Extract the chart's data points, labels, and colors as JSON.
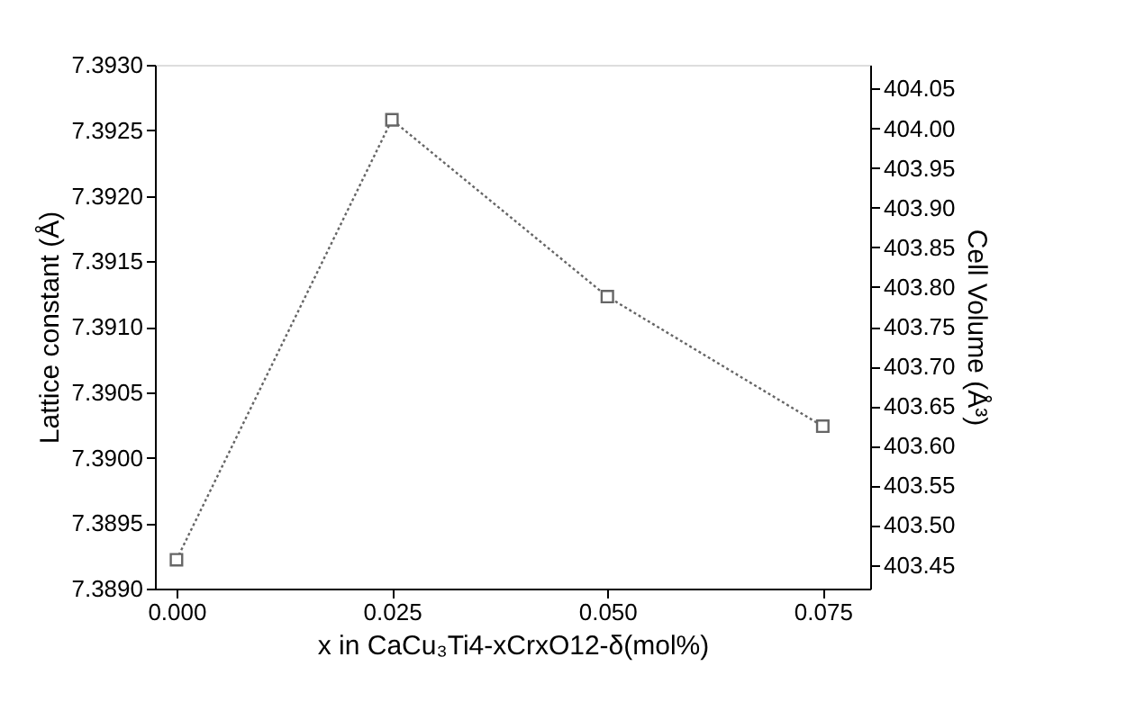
{
  "chart_data": {
    "type": "line",
    "xlabel": "x in CaCu₃Ti4-xCrxO12-δ(mol%)",
    "ylabel": "Lattice constant (Å)",
    "y2label": "Cell Volume (Å³)",
    "x": [
      0.0,
      0.025,
      0.05,
      0.075
    ],
    "series": [
      {
        "color": "#666666",
        "values": [
          7.38922,
          7.39258,
          7.39123,
          7.39024
        ]
      }
    ],
    "xlim": [
      -0.0025,
      0.0805
    ],
    "xticks": [
      {
        "value": 0,
        "label": "0.000"
      },
      {
        "value": 0.025,
        "label": "0.025"
      },
      {
        "value": 0.05,
        "label": "0.050"
      },
      {
        "value": 0.075,
        "label": "0.075"
      }
    ],
    "ylim": [
      7.389,
      7.393
    ],
    "yticks": [
      {
        "value": 7.389,
        "label": "7.3890"
      },
      {
        "value": 7.3895,
        "label": "7.3895"
      },
      {
        "value": 7.39,
        "label": "7.3900"
      },
      {
        "value": 7.3905,
        "label": "7.3905"
      },
      {
        "value": 7.391,
        "label": "7.3910"
      },
      {
        "value": 7.3915,
        "label": "7.3915"
      },
      {
        "value": 7.392,
        "label": "7.3920"
      },
      {
        "value": 7.3925,
        "label": "7.3925"
      },
      {
        "value": 7.393,
        "label": "7.3930"
      }
    ],
    "y2lim": [
      403.42,
      404.08
    ],
    "y2ticks": [
      {
        "value": 403.45,
        "label": "403.45"
      },
      {
        "value": 403.5,
        "label": "403.50"
      },
      {
        "value": 403.55,
        "label": "403.55"
      },
      {
        "value": 403.6,
        "label": "403.60"
      },
      {
        "value": 403.65,
        "label": "403.65"
      },
      {
        "value": 403.7,
        "label": "403.70"
      },
      {
        "value": 403.75,
        "label": "403.75"
      },
      {
        "value": 403.8,
        "label": "403.80"
      },
      {
        "value": 403.85,
        "label": "403.85"
      },
      {
        "value": 403.9,
        "label": "403.90"
      },
      {
        "value": 403.95,
        "label": "403.95"
      },
      {
        "value": 404.0,
        "label": "404.00"
      },
      {
        "value": 404.05,
        "label": "404.05"
      }
    ],
    "marker": "square",
    "line_style": "dotted"
  }
}
